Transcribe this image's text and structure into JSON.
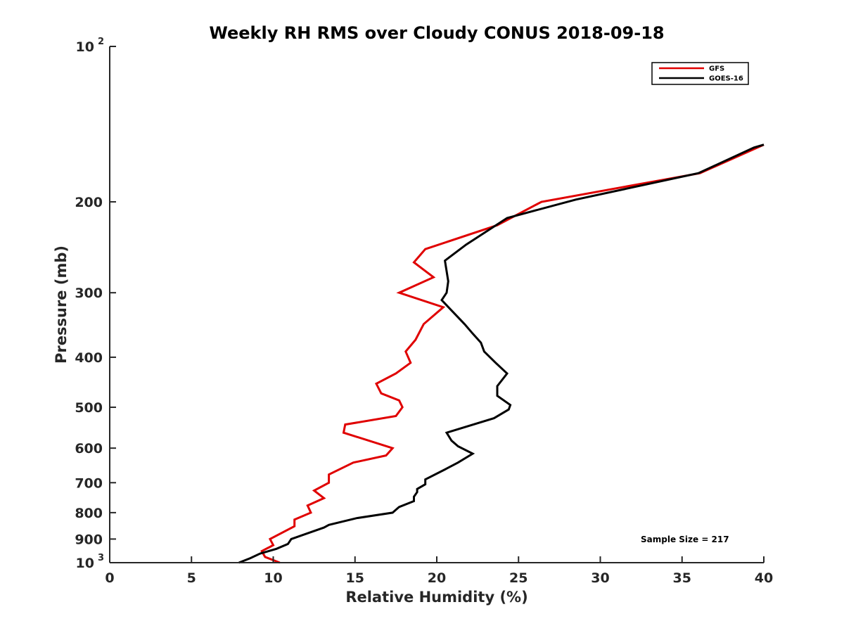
{
  "chart_data": {
    "type": "line",
    "title": "Weekly RH RMS over Cloudy CONUS 2018-09-18",
    "xlabel": "Relative Humidity (%)",
    "ylabel": "Pressure (mb)",
    "xlim": [
      0,
      40
    ],
    "ylim": [
      100,
      1000
    ],
    "y_scale": "log",
    "y_reversed": true,
    "x_ticks": [
      "0",
      "5",
      "10",
      "15",
      "20",
      "25",
      "30",
      "35",
      "40"
    ],
    "y_ticks": [
      {
        "value": 100,
        "label": "10",
        "exp": "2"
      },
      {
        "value": 200,
        "label": "200"
      },
      {
        "value": 300,
        "label": "300"
      },
      {
        "value": 400,
        "label": "400"
      },
      {
        "value": 500,
        "label": "500"
      },
      {
        "value": 600,
        "label": "600"
      },
      {
        "value": 700,
        "label": "700"
      },
      {
        "value": 800,
        "label": "800"
      },
      {
        "value": 900,
        "label": "900"
      },
      {
        "value": 1000,
        "label": "10",
        "exp": "3"
      }
    ],
    "legend_position": "top-right",
    "grid": false,
    "annotation": "Sample Size = 217",
    "series": [
      {
        "name": "GFS",
        "color": "#e00000",
        "points": [
          [
            10.4,
            1000
          ],
          [
            9.5,
            975
          ],
          [
            9.3,
            950
          ],
          [
            10.0,
            925
          ],
          [
            9.8,
            900
          ],
          [
            11.3,
            850
          ],
          [
            11.3,
            825
          ],
          [
            12.3,
            800
          ],
          [
            12.1,
            775
          ],
          [
            13.1,
            750
          ],
          [
            12.5,
            725
          ],
          [
            13.4,
            700
          ],
          [
            13.4,
            675
          ],
          [
            14.9,
            640
          ],
          [
            16.9,
            620
          ],
          [
            17.3,
            600
          ],
          [
            14.3,
            560
          ],
          [
            14.4,
            540
          ],
          [
            17.5,
            520
          ],
          [
            17.9,
            500
          ],
          [
            17.7,
            485
          ],
          [
            16.6,
            470
          ],
          [
            16.3,
            450
          ],
          [
            17.5,
            430
          ],
          [
            18.4,
            410
          ],
          [
            18.1,
            390
          ],
          [
            18.7,
            370
          ],
          [
            19.2,
            345
          ],
          [
            20.4,
            320
          ],
          [
            17.7,
            300
          ],
          [
            19.8,
            280
          ],
          [
            18.6,
            262
          ],
          [
            19.3,
            247
          ],
          [
            23.7,
            222
          ],
          [
            26.4,
            200
          ],
          [
            36.1,
            176
          ],
          [
            40.0,
            155
          ]
        ]
      },
      {
        "name": "GOES-16",
        "color": "#000000",
        "points": [
          [
            7.9,
            1000
          ],
          [
            8.6,
            980
          ],
          [
            9.2,
            960
          ],
          [
            10.2,
            940
          ],
          [
            10.9,
            920
          ],
          [
            11.1,
            900
          ],
          [
            13.1,
            855
          ],
          [
            13.4,
            845
          ],
          [
            15.1,
            820
          ],
          [
            17.3,
            800
          ],
          [
            17.7,
            780
          ],
          [
            18.6,
            760
          ],
          [
            18.6,
            745
          ],
          [
            18.8,
            730
          ],
          [
            18.8,
            720
          ],
          [
            19.3,
            705
          ],
          [
            19.3,
            690
          ],
          [
            20.5,
            660
          ],
          [
            21.3,
            640
          ],
          [
            22.2,
            615
          ],
          [
            21.3,
            595
          ],
          [
            20.9,
            580
          ],
          [
            20.6,
            560
          ],
          [
            23.5,
            525
          ],
          [
            24.4,
            505
          ],
          [
            24.5,
            495
          ],
          [
            23.7,
            475
          ],
          [
            23.7,
            455
          ],
          [
            24.3,
            430
          ],
          [
            23.6,
            410
          ],
          [
            22.9,
            390
          ],
          [
            22.7,
            375
          ],
          [
            22.2,
            360
          ],
          [
            21.7,
            345
          ],
          [
            20.3,
            310
          ],
          [
            20.6,
            300
          ],
          [
            20.7,
            285
          ],
          [
            20.5,
            260
          ],
          [
            21.8,
            242
          ],
          [
            24.3,
            215
          ],
          [
            28.5,
            198
          ],
          [
            36.0,
            176
          ],
          [
            39.4,
            157
          ],
          [
            40.0,
            155
          ]
        ]
      }
    ]
  }
}
